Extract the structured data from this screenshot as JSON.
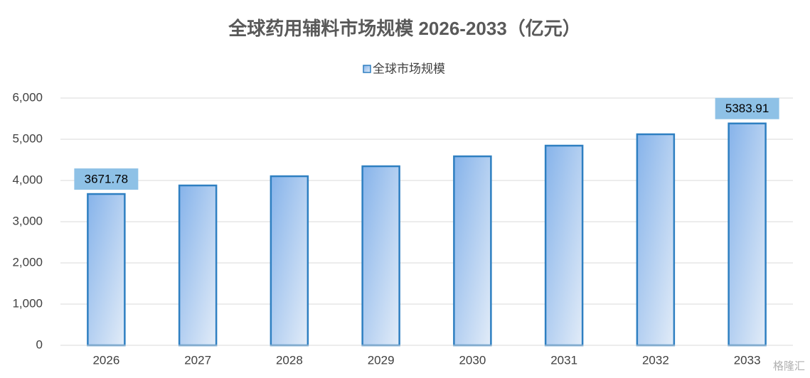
{
  "chart_data": {
    "type": "bar",
    "title": "全球药用辅料市场规模 2026-2033（亿元）",
    "categories": [
      "2026",
      "2027",
      "2028",
      "2029",
      "2030",
      "2031",
      "2032",
      "2033"
    ],
    "series": [
      {
        "name": "全球市场规模",
        "color": "#2e7fc1",
        "values": [
          3671.78,
          3879,
          4103,
          4345,
          4586,
          4845,
          5121,
          5383.91
        ],
        "value_labels": [
          "3671.78",
          null,
          null,
          null,
          null,
          null,
          null,
          "5383.91"
        ]
      }
    ],
    "ylim": [
      0,
      6000
    ],
    "yticks": [
      0,
      {
        "value": 1000,
        "label": "1,000"
      },
      {
        "value": 2000,
        "label": "2,000"
      },
      {
        "value": 3000,
        "label": "3,000"
      },
      {
        "value": 4000,
        "label": "4,000"
      },
      {
        "value": 5000,
        "label": "5,000"
      },
      {
        "value": 6000,
        "label": "6,000"
      }
    ],
    "grid": true,
    "legend": "top",
    "watermark": "格隆汇"
  }
}
